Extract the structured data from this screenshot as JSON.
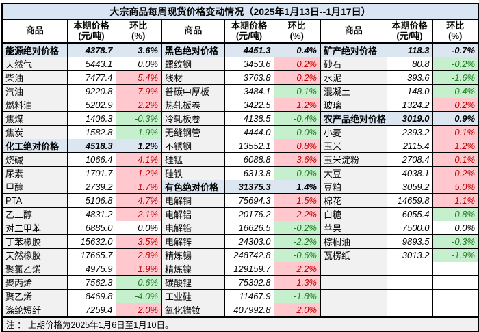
{
  "title": "大宗商品每周现货价格变动情况（2025年1月13日--1月17日）",
  "note": "注 ： 上期价格为2025年1月6日至1月10日。",
  "header": {
    "commodity": "商品",
    "price_line1": "本期价格",
    "price_line2": "(元/吨)",
    "pct_line1": "环比",
    "pct_line2": "(%)"
  },
  "colors": {
    "title_bg": "#d9e5f2",
    "category_bg": "#dce6f1",
    "up_bg": "#ffc7ce",
    "up_text": "#c00000",
    "down_bg": "#c6efce",
    "down_text": "#1e7b1e",
    "name_col_bg": "#f1f1f1",
    "note_bg": "#f0f0f0",
    "border": "#000000"
  },
  "groups": [
    {
      "rows": [
        {
          "name": "能源绝对价格",
          "price": "4378.7",
          "pct": "3.6%",
          "kind": "category",
          "tone": "flat"
        },
        {
          "name": "天然气",
          "price": "5443.1",
          "pct": "0.0%",
          "kind": "item",
          "tone": "flat"
        },
        {
          "name": "柴油",
          "price": "7477.4",
          "pct": "5.4%",
          "kind": "item",
          "tone": "up"
        },
        {
          "name": "汽油",
          "price": "9220.8",
          "pct": "7.9%",
          "kind": "item",
          "tone": "up"
        },
        {
          "name": "燃料油",
          "price": "5202.9",
          "pct": "2.2%",
          "kind": "item",
          "tone": "up"
        },
        {
          "name": "焦煤",
          "price": "1406.3",
          "pct": "-0.3%",
          "kind": "item",
          "tone": "down"
        },
        {
          "name": "焦炭",
          "price": "1582.8",
          "pct": "-1.9%",
          "kind": "item",
          "tone": "down"
        },
        {
          "name": "化工绝对价格",
          "price": "4518.3",
          "pct": "1.2%",
          "kind": "category",
          "tone": "flat"
        },
        {
          "name": "烧碱",
          "price": "1066.4",
          "pct": "4.1%",
          "kind": "item",
          "tone": "up"
        },
        {
          "name": "尿素",
          "price": "1701.7",
          "pct": "1.2%",
          "kind": "item",
          "tone": "up"
        },
        {
          "name": "甲醇",
          "price": "2739.2",
          "pct": "1.7%",
          "kind": "item",
          "tone": "up"
        },
        {
          "name": "PTA",
          "price": "5106.8",
          "pct": "4.7%",
          "kind": "item",
          "tone": "up"
        },
        {
          "name": "乙二醇",
          "price": "4831.2",
          "pct": "2.1%",
          "kind": "item",
          "tone": "up"
        },
        {
          "name": "对二甲苯",
          "price": "6885.0",
          "pct": "0.0%",
          "kind": "item",
          "tone": "flat"
        },
        {
          "name": "丁苯橡胶",
          "price": "15632.0",
          "pct": "3.5%",
          "kind": "item",
          "tone": "up"
        },
        {
          "name": "天然橡胶",
          "price": "17665.7",
          "pct": "2.8%",
          "kind": "item",
          "tone": "up"
        },
        {
          "name": "聚氯乙烯",
          "price": "4975.9",
          "pct": "1.9%",
          "kind": "item",
          "tone": "up"
        },
        {
          "name": "聚丙烯",
          "price": "7562.3",
          "pct": "-0.6%",
          "kind": "item",
          "tone": "down"
        },
        {
          "name": "聚乙烯",
          "price": "8469.8",
          "pct": "-4.0%",
          "kind": "item",
          "tone": "down"
        },
        {
          "name": "涤纶短纤",
          "price": "7259.4",
          "pct": "2.0%",
          "kind": "item",
          "tone": "up"
        }
      ]
    },
    {
      "rows": [
        {
          "name": "黑色绝对价格",
          "price": "4451.3",
          "pct": "0.4%",
          "kind": "category",
          "tone": "flat"
        },
        {
          "name": "螺纹钢",
          "price": "3453.6",
          "pct": "0.2%",
          "kind": "item",
          "tone": "up"
        },
        {
          "name": "线材",
          "price": "3763.8",
          "pct": "0.2%",
          "kind": "item",
          "tone": "up"
        },
        {
          "name": "普碳中厚板",
          "price": "3484.1",
          "pct": "-0.1%",
          "kind": "item",
          "tone": "down"
        },
        {
          "name": "热轧板卷",
          "price": "3422.5",
          "pct": "1.2%",
          "kind": "item",
          "tone": "up"
        },
        {
          "name": "冷轧板卷",
          "price": "4138.5",
          "pct": "-0.4%",
          "kind": "item",
          "tone": "down"
        },
        {
          "name": "无缝钢管",
          "price": "4444.0",
          "pct": "0.0%",
          "kind": "item",
          "tone": "down"
        },
        {
          "name": "不锈钢",
          "price": "13552.1",
          "pct": "0.8%",
          "kind": "item",
          "tone": "up"
        },
        {
          "name": "硅锰",
          "price": "6088.8",
          "pct": "3.6%",
          "kind": "item",
          "tone": "up"
        },
        {
          "name": "硅铁",
          "price": "6313.8",
          "pct": "0.0%",
          "kind": "item",
          "tone": "down"
        },
        {
          "name": "有色绝对价格",
          "price": "31375.3",
          "pct": "1.4%",
          "kind": "category",
          "tone": "flat"
        },
        {
          "name": "电解铜",
          "price": "75694.3",
          "pct": "1.5%",
          "kind": "item",
          "tone": "up"
        },
        {
          "name": "电解铝",
          "price": "20176.2",
          "pct": "2.2%",
          "kind": "item",
          "tone": "up"
        },
        {
          "name": "电解铅",
          "price": "16626.5",
          "pct": "-0.2%",
          "kind": "item",
          "tone": "down"
        },
        {
          "name": "电解锌",
          "price": "24303.0",
          "pct": "-2.2%",
          "kind": "item",
          "tone": "down"
        },
        {
          "name": "精炼锡",
          "price": "248742.8",
          "pct": "-0.6%",
          "kind": "item",
          "tone": "down"
        },
        {
          "name": "精炼镍",
          "price": "129159.7",
          "pct": "2.2%",
          "kind": "item",
          "tone": "up"
        },
        {
          "name": "碳酸锂",
          "price": "75392.8",
          "pct": "1.3%",
          "kind": "item",
          "tone": "up"
        },
        {
          "name": "工业硅",
          "price": "11467.9",
          "pct": "-1.8%",
          "kind": "item",
          "tone": "down"
        },
        {
          "name": "氧化镨钕",
          "price": "407992.8",
          "pct": "2.0%",
          "kind": "item",
          "tone": "up"
        }
      ]
    },
    {
      "rows": [
        {
          "name": "矿产绝对价格",
          "price": "118.3",
          "pct": "-0.7%",
          "kind": "category",
          "tone": "flat"
        },
        {
          "name": "砂石",
          "price": "80.8",
          "pct": "-0.2%",
          "kind": "item",
          "tone": "down"
        },
        {
          "name": "水泥",
          "price": "393.6",
          "pct": "-1.6%",
          "kind": "item",
          "tone": "down"
        },
        {
          "name": "混凝土",
          "price": "148.0",
          "pct": "-0.4%",
          "kind": "item",
          "tone": "down"
        },
        {
          "name": "玻璃",
          "price": "1324.2",
          "pct": "0.2%",
          "kind": "item",
          "tone": "up"
        },
        {
          "name": "农产品绝对价格",
          "price": "3019.0",
          "pct": "0.9%",
          "kind": "category",
          "tone": "flat"
        },
        {
          "name": "小麦",
          "price": "2393.2",
          "pct": "0.1%",
          "kind": "item",
          "tone": "up"
        },
        {
          "name": "玉米",
          "price": "2115.4",
          "pct": "1.2%",
          "kind": "item",
          "tone": "up"
        },
        {
          "name": "玉米淀粉",
          "price": "2708.4",
          "pct": "0.1%",
          "kind": "item",
          "tone": "up"
        },
        {
          "name": "大豆",
          "price": "4038.1",
          "pct": "0.2%",
          "kind": "item",
          "tone": "up"
        },
        {
          "name": "豆粕",
          "price": "3059.2",
          "pct": "5.0%",
          "kind": "item",
          "tone": "up"
        },
        {
          "name": "棉花",
          "price": "14659.8",
          "pct": "1.1%",
          "kind": "item",
          "tone": "up"
        },
        {
          "name": "白糖",
          "price": "6055.4",
          "pct": "-0.8%",
          "kind": "item",
          "tone": "down"
        },
        {
          "name": "苹果",
          "price": "7500.0",
          "pct": "0.0%",
          "kind": "item",
          "tone": "flat"
        },
        {
          "name": "棕榈油",
          "price": "9893.5",
          "pct": "-0.3%",
          "kind": "item",
          "tone": "down"
        },
        {
          "name": "瓦楞纸",
          "price": "3013.2",
          "pct": "-1.9%",
          "kind": "item",
          "tone": "down"
        },
        {
          "name": "",
          "price": "",
          "pct": "",
          "kind": "empty",
          "tone": "flat"
        },
        {
          "name": "",
          "price": "",
          "pct": "",
          "kind": "empty",
          "tone": "flat"
        },
        {
          "name": "",
          "price": "",
          "pct": "",
          "kind": "empty",
          "tone": "flat"
        },
        {
          "name": "",
          "price": "",
          "pct": "",
          "kind": "empty",
          "tone": "flat"
        }
      ]
    }
  ]
}
